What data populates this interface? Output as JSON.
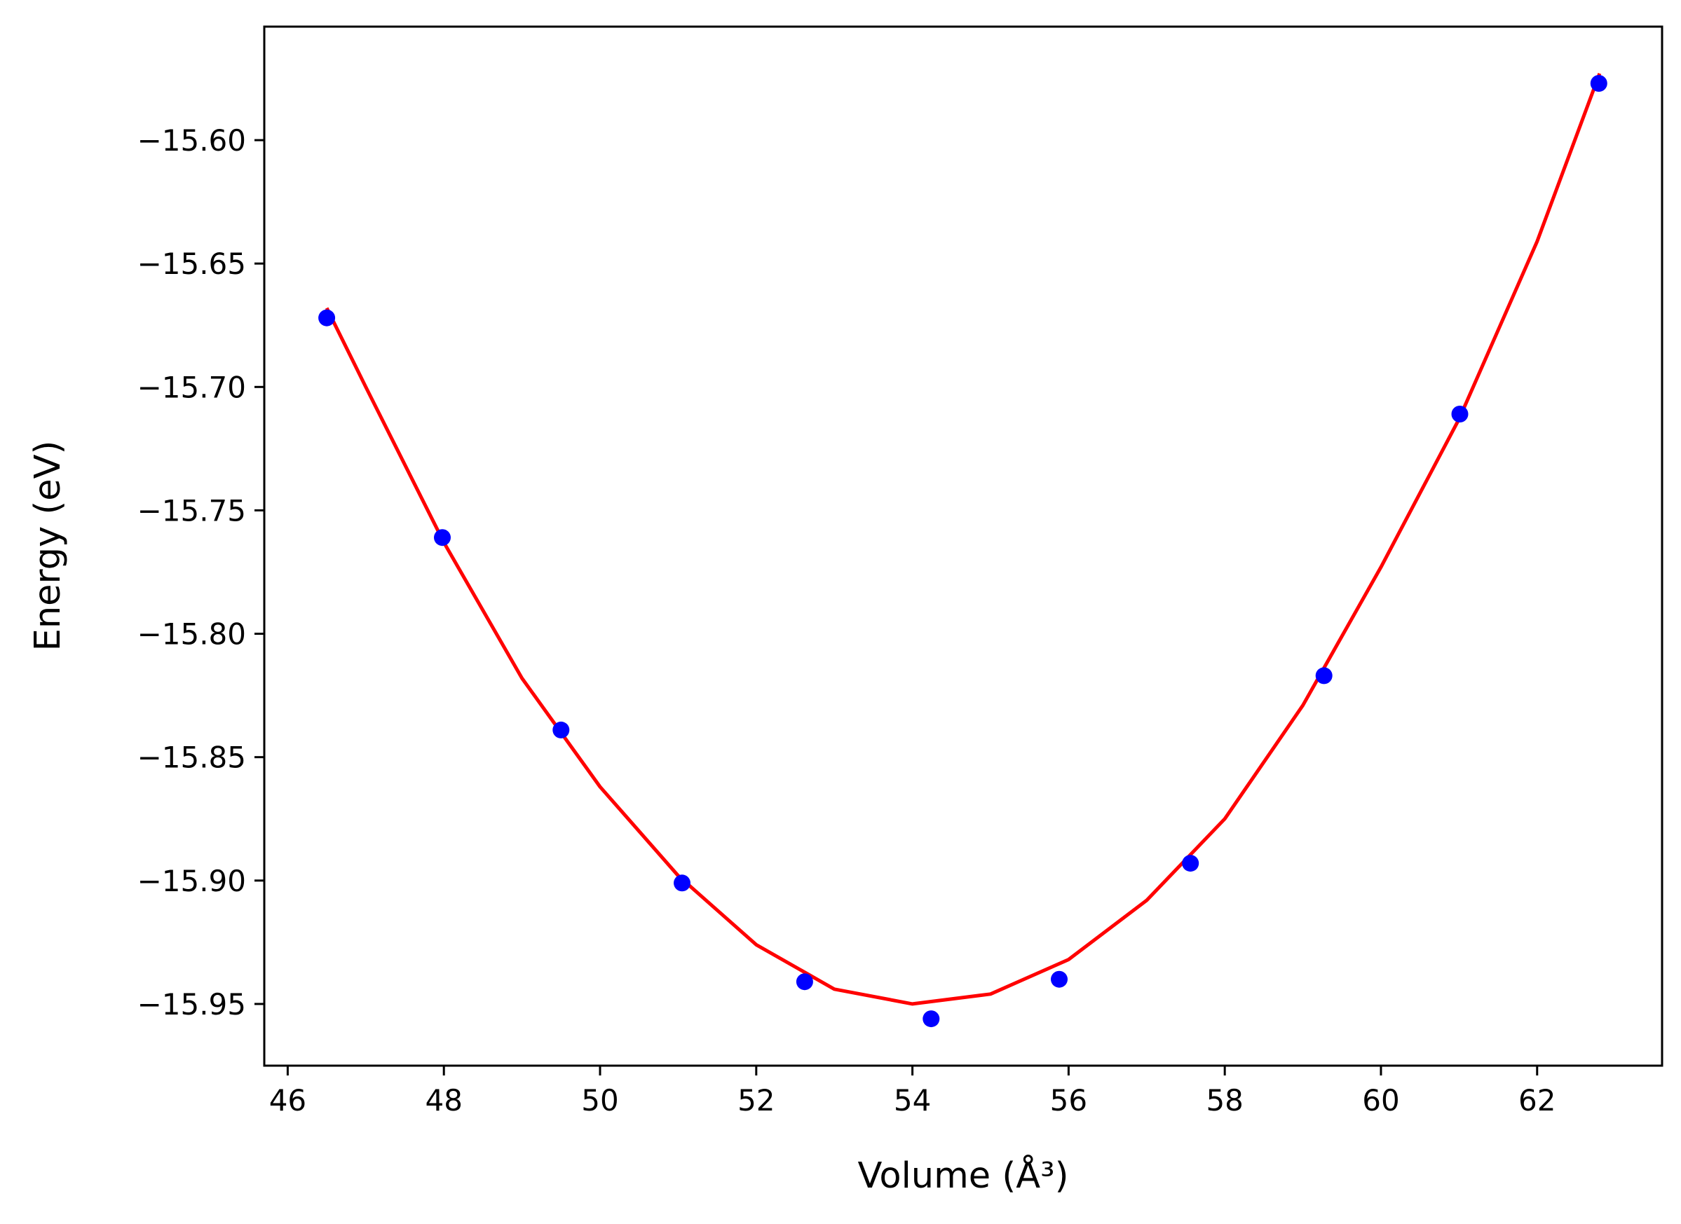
{
  "chart_data": {
    "type": "scatter",
    "title": "",
    "xlabel": "Volume (Å³)",
    "ylabel": "Energy (eV)",
    "xlim": [
      45.7,
      63.6
    ],
    "ylim": [
      -15.975,
      -15.554
    ],
    "x_ticks": [
      46,
      48,
      50,
      52,
      54,
      56,
      58,
      60,
      62
    ],
    "x_tick_labels": [
      "46",
      "48",
      "50",
      "52",
      "54",
      "56",
      "58",
      "60",
      "62"
    ],
    "y_ticks": [
      -15.6,
      -15.65,
      -15.7,
      -15.75,
      -15.8,
      -15.85,
      -15.9,
      -15.95
    ],
    "y_tick_labels": [
      "−15.60",
      "−15.65",
      "−15.70",
      "−15.75",
      "−15.80",
      "−15.85",
      "−15.90",
      "−15.95"
    ],
    "grid": false,
    "legend": "none",
    "series": [
      {
        "kind": "points",
        "color": "#0000ff",
        "x": [
          46.5,
          47.98,
          49.5,
          51.05,
          52.62,
          54.24,
          55.88,
          57.56,
          59.27,
          61.01,
          62.79
        ],
        "y": [
          -15.672,
          -15.761,
          -15.839,
          -15.901,
          -15.941,
          -15.956,
          -15.94,
          -15.893,
          -15.817,
          -15.711,
          -15.577
        ]
      },
      {
        "kind": "fit-curve",
        "color": "#ff0000",
        "x": [
          46.5,
          47.0,
          48.0,
          49.0,
          50.0,
          51.0,
          52.0,
          53.0,
          54.0,
          55.0,
          56.0,
          57.0,
          58.0,
          59.0,
          60.0,
          61.0,
          62.0,
          62.8
        ],
        "y": [
          -15.668,
          -15.7,
          -15.763,
          -15.818,
          -15.862,
          -15.898,
          -15.926,
          -15.944,
          -15.95,
          -15.946,
          -15.932,
          -15.908,
          -15.875,
          -15.829,
          -15.773,
          -15.713,
          -15.641,
          -15.573
        ]
      }
    ]
  }
}
